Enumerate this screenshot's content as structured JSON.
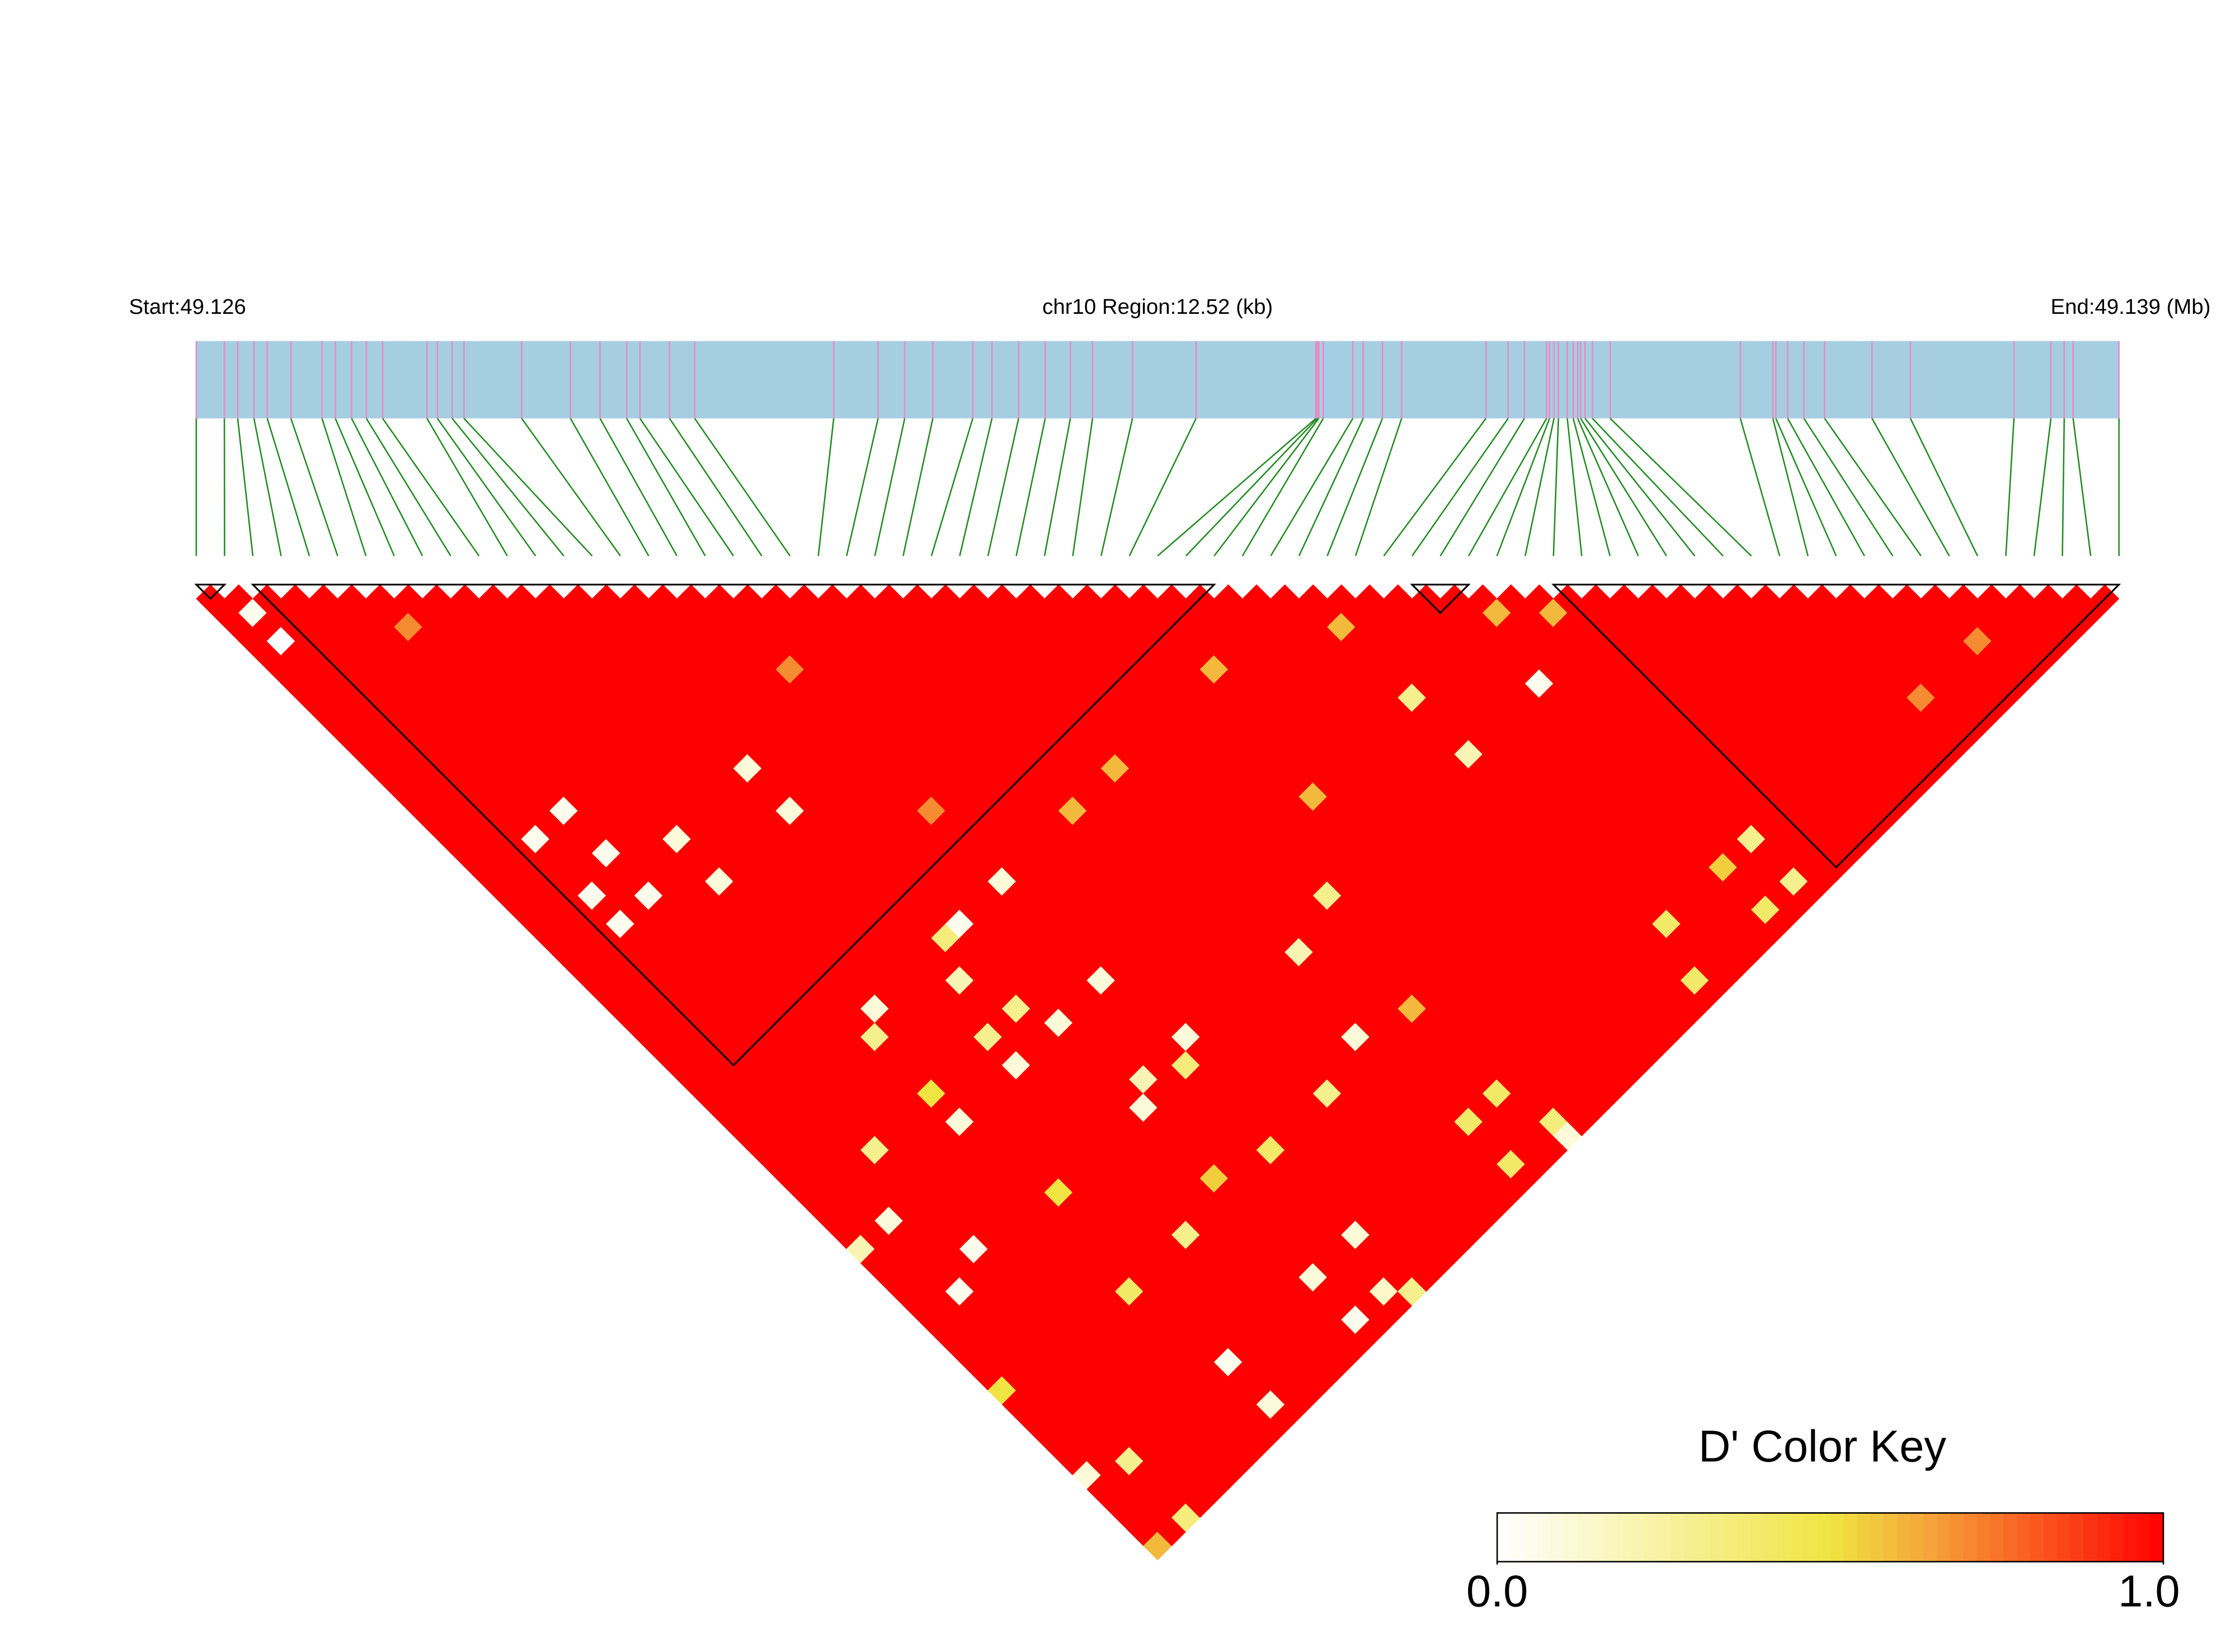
{
  "chart_data": {
    "type": "heatmap",
    "x_start_label": "Start:49.126",
    "region_label": "chr10 Region:12.52 (kb)",
    "x_end_label": "End:49.139 (Mb)",
    "xlim": [
      49.126,
      49.139
    ],
    "snp_positions": [
      49.126,
      49.12619,
      49.12628,
      49.12639,
      49.12648,
      49.12664,
      49.12685,
      49.12694,
      49.12705,
      49.12715,
      49.12726,
      49.12756,
      49.12763,
      49.12773,
      49.12781,
      49.1282,
      49.12853,
      49.12873,
      49.12891,
      49.129,
      49.1292,
      49.12937,
      49.13031,
      49.13061,
      49.13079,
      49.13098,
      49.13125,
      49.13138,
      49.13156,
      49.13174,
      49.13191,
      49.13206,
      49.13233,
      49.13276,
      49.13357,
      49.13358,
      49.13359,
      49.13362,
      49.13382,
      49.13389,
      49.13402,
      49.13415,
      49.13472,
      49.13487,
      49.13498,
      49.13513,
      49.13515,
      49.13518,
      49.13521,
      49.13527,
      49.13531,
      49.13534,
      49.13536,
      49.13539,
      49.13544,
      49.13556,
      49.13644,
      49.13666,
      49.13668,
      49.13676,
      49.13687,
      49.13701,
      49.13733,
      49.13759,
      49.13829,
      49.13854,
      49.13863,
      49.13869,
      49.139
    ],
    "bar_color": "#a6cee3",
    "snp_line_color": "#e78ac3",
    "link_color": "#228b22",
    "background_d": 1,
    "cells": [
      [
        1,
        3,
        0.05
      ],
      [
        1,
        5,
        0
      ],
      [
        13,
        26,
        0.1
      ],
      [
        13,
        29,
        0.1
      ],
      [
        5,
        21,
        0.05
      ],
      [
        3,
        21,
        0.05
      ],
      [
        5,
        24,
        0.05
      ],
      [
        8,
        26,
        0.1
      ],
      [
        3,
        25,
        0.05
      ],
      [
        5,
        27,
        0.05
      ],
      [
        8,
        29,
        0.1
      ],
      [
        3,
        27,
        0.05
      ],
      [
        18,
        39,
        0.1
      ],
      [
        15,
        39,
        0.05
      ],
      [
        9,
        39,
        0.1
      ],
      [
        14,
        39,
        0.35
      ],
      [
        18,
        46,
        0.1
      ],
      [
        13,
        41,
        0.2
      ],
      [
        14,
        44,
        0.3
      ],
      [
        15,
        46,
        0.1
      ],
      [
        12,
        46,
        0.1
      ],
      [
        12,
        44,
        0.3
      ],
      [
        8,
        40,
        0.3
      ],
      [
        8,
        46,
        0.1
      ],
      [
        15,
        52,
        0.1
      ],
      [
        19,
        51,
        0.1
      ],
      [
        16,
        51,
        0.2
      ],
      [
        18,
        52,
        0.35
      ],
      [
        4,
        44,
        0.3
      ],
      [
        2,
        47,
        0.1
      ],
      [
        4,
        51,
        0.05
      ],
      [
        2,
        52,
        0.05
      ],
      [
        0,
        47,
        0.2
      ],
      [
        12,
        58,
        0.3
      ],
      [
        8,
        58,
        0.4
      ],
      [
        18,
        58,
        0.4
      ],
      [
        18,
        64,
        0.1
      ],
      [
        15,
        64,
        0.1
      ],
      [
        15,
        67,
        0.05
      ],
      [
        17,
        67,
        0.15
      ],
      [
        18,
        68,
        0.3
      ],
      [
        9,
        64,
        0.05
      ],
      [
        9,
        67,
        0.1
      ],
      [
        2,
        64,
        0.3
      ],
      [
        0,
        63,
        0.1
      ],
      [
        2,
        68,
        0.35
      ],
      [
        0,
        68,
        0.6
      ],
      [
        44,
        51,
        0.05
      ],
      [
        39,
        47,
        0.3
      ],
      [
        39,
        51,
        0.2
      ],
      [
        29,
        51,
        0.3
      ],
      [
        26,
        52,
        0.2
      ],
      [
        46,
        64,
        0.3
      ],
      [
        46,
        67,
        0.3
      ],
      [
        39,
        67,
        0.4
      ],
      [
        40,
        64,
        0.4
      ],
      [
        28,
        64,
        0.4
      ],
      [
        26,
        64,
        0.4
      ],
      [
        29,
        67,
        0.35
      ],
      [
        26,
        67,
        0.4
      ],
      [
        29,
        68,
        0.1
      ],
      [
        44,
        67,
        0.4
      ],
      [
        22,
        58,
        0.3
      ],
      [
        25,
        57,
        0.1
      ],
      [
        28,
        58,
        0.6
      ],
      [
        0,
        57,
        0.5
      ],
      [
        6,
        9,
        0.7
      ],
      [
        18,
        24,
        0.7
      ],
      [
        18,
        34,
        0.7
      ],
      [
        33,
        39,
        0.6
      ],
      [
        39,
        42,
        0.6
      ],
      [
        45,
        47,
        0.6
      ],
      [
        47,
        49,
        0.6
      ],
      [
        61,
        65,
        0.7
      ],
      [
        57,
        65,
        0.7
      ],
      [
        26,
        39,
        0.6
      ],
      [
        23,
        39,
        0.6
      ],
      [
        32,
        47,
        0.6
      ],
      [
        8,
        44,
        0.5
      ],
      [
        15,
        57,
        0.55
      ],
      [
        9,
        52,
        0.5
      ],
      [
        44,
        64,
        0.55
      ]
    ],
    "blocks": [
      [
        0,
        1
      ],
      [
        2,
        36
      ],
      [
        43,
        45
      ],
      [
        48,
        68
      ]
    ],
    "colorscale": [
      [
        0,
        "#ffffff"
      ],
      [
        0.5,
        "#f0e442"
      ],
      [
        0.65,
        "#f5a33a"
      ],
      [
        1,
        "#ff0000"
      ]
    ],
    "colorbar_title": "D' Color Key",
    "clim": [
      0,
      1
    ],
    "cticks": [
      {
        "value": 0,
        "label": "0.0"
      },
      {
        "value": 1,
        "label": "1.0"
      }
    ]
  }
}
